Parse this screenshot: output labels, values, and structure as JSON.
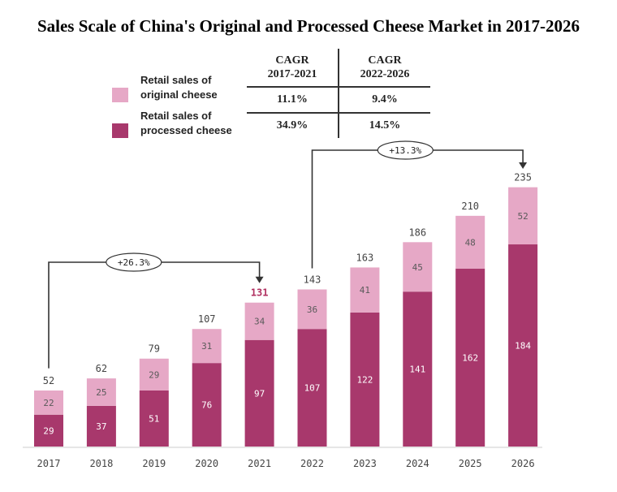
{
  "chart_data": {
    "type": "bar",
    "stacked": true,
    "title": "Sales Scale of China's Original and Processed Cheese Market in 2017-2026",
    "categories": [
      "2017",
      "2018",
      "2019",
      "2020",
      "2021",
      "2022",
      "2023",
      "2024",
      "2025",
      "2026"
    ],
    "series": [
      {
        "name": "Retail sales of processed cheese",
        "values": [
          29,
          37,
          51,
          76,
          97,
          107,
          122,
          141,
          162,
          184
        ],
        "color": "#a8386c"
      },
      {
        "name": "Retail sales of original cheese",
        "values": [
          22,
          25,
          29,
          31,
          34,
          36,
          41,
          45,
          48,
          52
        ],
        "color": "#e6a8c6"
      }
    ],
    "totals": [
      52,
      62,
      79,
      107,
      131,
      143,
      163,
      186,
      210,
      235
    ],
    "ylim": [
      0,
      240
    ],
    "grid": false,
    "legend_position": "top-left",
    "legend": [
      {
        "line1": "Retail sales of",
        "line2": "original cheese",
        "color": "#e6a8c6"
      },
      {
        "line1": "Retail sales of",
        "line2": "processed cheese",
        "color": "#a8386c"
      }
    ],
    "cagr_table": {
      "headers": [
        [
          "CAGR",
          "2017-2021"
        ],
        [
          "CAGR",
          "2022-2026"
        ]
      ],
      "rows": [
        [
          "11.1%",
          "9.4%"
        ],
        [
          "34.9%",
          "14.5%"
        ]
      ]
    },
    "annotations": [
      {
        "label": "+26.3%",
        "from": "2017",
        "to": "2021"
      },
      {
        "label": "+13.3%",
        "from": "2022",
        "to": "2026"
      }
    ],
    "highlight_total_color": "#b03060",
    "highlight_total_index": 4
  }
}
